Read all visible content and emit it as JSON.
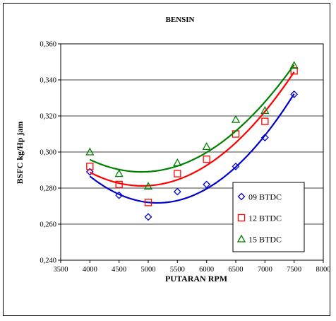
{
  "chart_data": {
    "type": "scatter",
    "title": "BENSIN",
    "xlabel": "PUTARAN RPM",
    "ylabel": "BSFC  kg/Hp  jam",
    "xlim": [
      3500,
      8000
    ],
    "ylim": [
      0.24,
      0.36
    ],
    "x_ticks": [
      "3500",
      "4000",
      "4500",
      "5000",
      "5500",
      "6000",
      "6500",
      "7000",
      "7500",
      "8000"
    ],
    "y_ticks": [
      "0,240",
      "0,260",
      "0,280",
      "0,300",
      "0,320",
      "0,340",
      "0,360"
    ],
    "grid": "horizontal",
    "legend_position": "right",
    "series": [
      {
        "name": "09 BTDC",
        "marker": "diamond",
        "color": "#0000cc",
        "x": [
          4000,
          4500,
          5000,
          5500,
          6000,
          6500,
          7000,
          7500
        ],
        "values": [
          0.289,
          0.276,
          0.264,
          0.278,
          0.282,
          0.292,
          0.308,
          0.332
        ]
      },
      {
        "name": "12 BTDC",
        "marker": "square",
        "color": "#ff0000",
        "x": [
          4000,
          4500,
          5000,
          5500,
          6000,
          6500,
          7000,
          7500
        ],
        "values": [
          0.292,
          0.282,
          0.272,
          0.288,
          0.296,
          0.31,
          0.317,
          0.345
        ]
      },
      {
        "name": "15 BTDC",
        "marker": "triangle",
        "color": "#008000",
        "x": [
          4000,
          4500,
          5000,
          5500,
          6000,
          6500,
          7000,
          7500
        ],
        "values": [
          0.3,
          0.288,
          0.281,
          0.294,
          0.303,
          0.318,
          0.323,
          0.348
        ]
      }
    ]
  },
  "colors": {
    "frame": "#000000",
    "grid": "#000000"
  }
}
